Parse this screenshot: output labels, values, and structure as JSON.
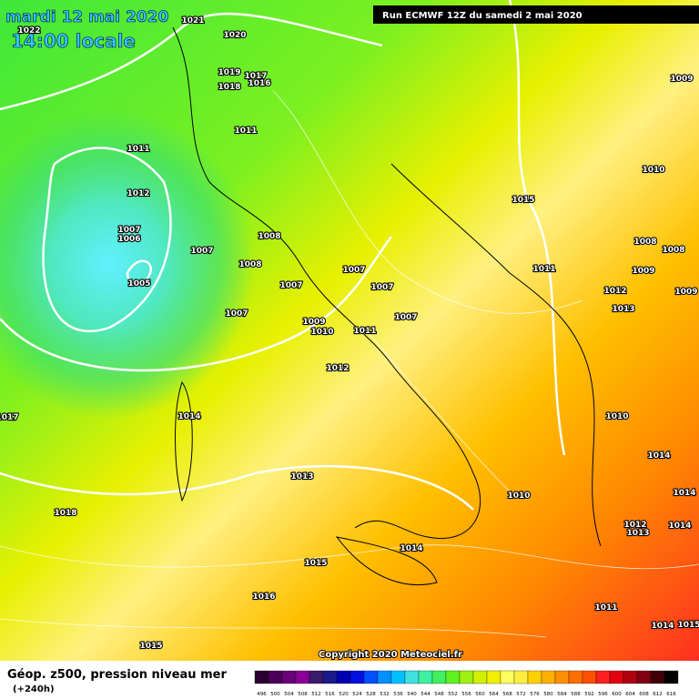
{
  "header": {
    "date": "mardi 12 mai 2020",
    "time": "14:00 locale",
    "run": "Run ECMWF 12Z du samedi 2 mai 2020"
  },
  "isobar_labels": [
    1021,
    1022,
    1020,
    1019,
    1017,
    1018,
    1016,
    1011,
    1011,
    1012,
    1007,
    1006,
    1007,
    1008,
    1008,
    1005,
    1007,
    1007,
    1007,
    1007,
    1009,
    1010,
    1011,
    1007,
    1012,
    1015,
    1009,
    1010,
    1011,
    1008,
    1008,
    1009,
    1012,
    1009,
    1013,
    1014,
    1017,
    1013,
    1010,
    1014,
    1010,
    1014,
    1012,
    1014,
    1013,
    1018,
    1014,
    1015,
    1016,
    1011,
    1014,
    1015,
    1015
  ],
  "copyright": "Copyright 2020 Meteociel.fr",
  "footer": {
    "title": "Géop. z500, pression niveau mer",
    "lead": "(+240h)"
  },
  "scale": {
    "labels": [
      496,
      500,
      504,
      508,
      512,
      516,
      520,
      524,
      528,
      532,
      536,
      540,
      544,
      548,
      552,
      556,
      560,
      564,
      568,
      572,
      576,
      580,
      584,
      588,
      592,
      596,
      600,
      604,
      608,
      612,
      616
    ],
    "colors": [
      "#2a0030",
      "#4b0058",
      "#6a0078",
      "#8a0098",
      "#3a1a6a",
      "#1a1a8a",
      "#0000b0",
      "#0010e0",
      "#0050ff",
      "#0090ff",
      "#00c0ff",
      "#40e0e0",
      "#40f0a0",
      "#40f060",
      "#60f020",
      "#a0f010",
      "#d0f000",
      "#f0f000",
      "#ffff60",
      "#ffee40",
      "#ffd000",
      "#ffb000",
      "#ff9000",
      "#ff7000",
      "#ff5000",
      "#ff2020",
      "#e00010",
      "#b00010",
      "#800010",
      "#400008",
      "#000000"
    ]
  }
}
